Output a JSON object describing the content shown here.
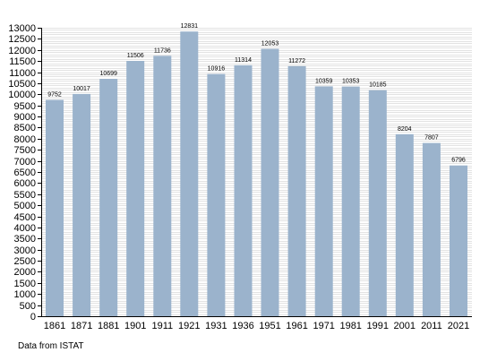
{
  "chart_data": {
    "type": "bar",
    "categories": [
      "1861",
      "1871",
      "1881",
      "1901",
      "1911",
      "1921",
      "1931",
      "1936",
      "1951",
      "1961",
      "1971",
      "1981",
      "1991",
      "2001",
      "2011",
      "2021"
    ],
    "values": [
      9752,
      10017,
      10699,
      11506,
      11736,
      12831,
      10916,
      11314,
      12053,
      11272,
      10359,
      10353,
      10185,
      8204,
      7807,
      6796
    ],
    "data_labels": [
      "9752",
      "10017",
      "10699",
      "11506",
      "11736",
      "12831",
      "10916",
      "11314",
      "12053",
      "11272",
      "10359",
      "10353",
      "10185",
      "8204",
      "7807",
      "6796"
    ],
    "title": "",
    "xlabel": "",
    "ylabel": "",
    "ylim": [
      0,
      13000
    ],
    "y_ticks": [
      0,
      500,
      1000,
      1500,
      2000,
      2500,
      3000,
      3500,
      4000,
      4500,
      5000,
      5500,
      6000,
      6500,
      7000,
      7500,
      8000,
      8500,
      9000,
      9500,
      10000,
      10500,
      11000,
      11500,
      12000,
      12500,
      13000
    ],
    "y_minor_step": 100,
    "grid": true,
    "bar_color": "#9bb3cc",
    "grid_color": "#c8c8c8"
  },
  "footer": {
    "source": "Data from ISTAT"
  }
}
